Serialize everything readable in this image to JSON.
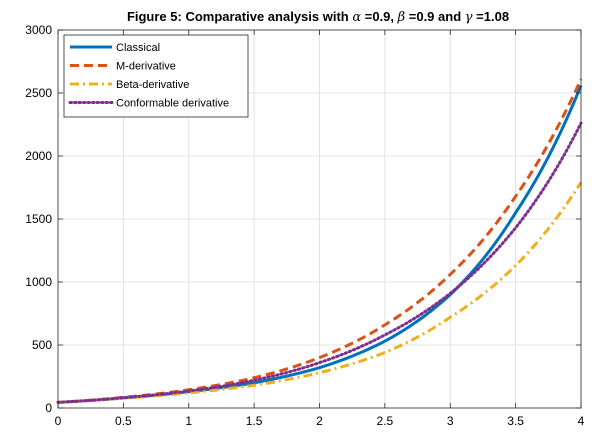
{
  "chart_data": {
    "type": "line",
    "title": {
      "prefix": "Figure 5: Comparative analysis with ",
      "alpha_symbol": "α",
      "alpha_value": " =0.9, ",
      "beta_symbol": "β",
      "beta_value": " =0.9 and ",
      "gamma_symbol": "γ",
      "gamma_value": " =1.08"
    },
    "xlabel": "",
    "ylabel": "",
    "xlim": [
      0,
      4
    ],
    "ylim": [
      0,
      3000
    ],
    "x_ticks": [
      "0",
      "0.5",
      "1",
      "1.5",
      "2",
      "2.5",
      "3",
      "3.5",
      "4"
    ],
    "y_ticks": [
      "0",
      "500",
      "1000",
      "1500",
      "2000",
      "2500",
      "3000"
    ],
    "grid": true,
    "legend_position": "top-left",
    "x": [
      0,
      0.5,
      1,
      1.5,
      2,
      2.5,
      3,
      3.5,
      4
    ],
    "series": [
      {
        "name": "Classical",
        "color": "#0072BD",
        "style": "solid",
        "values": [
          45,
          80,
          130,
          200,
          320,
          530,
          900,
          1550,
          2560
        ]
      },
      {
        "name": "M-derivative",
        "color": "#D95319",
        "style": "dashed",
        "values": [
          45,
          85,
          145,
          240,
          400,
          660,
          1060,
          1680,
          2610
        ]
      },
      {
        "name": "Beta-derivative",
        "color": "#EDB120",
        "style": "dashdot",
        "values": [
          45,
          78,
          120,
          180,
          280,
          440,
          720,
          1130,
          1790
        ]
      },
      {
        "name": "Conformable derivative",
        "color": "#7E2F8E",
        "style": "dotted",
        "values": [
          45,
          82,
          135,
          220,
          360,
          580,
          910,
          1430,
          2260
        ]
      }
    ]
  }
}
